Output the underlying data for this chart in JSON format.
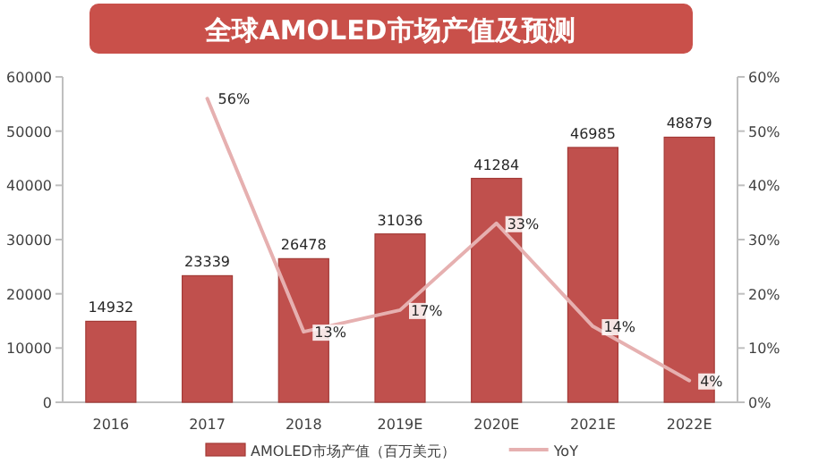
{
  "chart_data": {
    "type": "bar",
    "title": "全球AMOLED市场产值及预测",
    "categories": [
      "2016",
      "2017",
      "2018",
      "2019E",
      "2020E",
      "2021E",
      "2022E"
    ],
    "series": [
      {
        "name": "AMOLED市场产值（百万美元）",
        "color": "#c0504d",
        "values": [
          14932,
          23339,
          26478,
          31036,
          41284,
          46985,
          48879
        ],
        "data_labels": true
      },
      {
        "name": "YoY",
        "type": "line",
        "axis": "y2",
        "color": "#e6b0b0",
        "values": [
          null,
          56,
          13,
          17,
          33,
          14,
          4
        ],
        "value_labels": [
          null,
          "56%",
          "13%",
          "17%",
          "33%",
          "14%",
          "4%"
        ]
      }
    ],
    "ylim": [
      0,
      60000
    ],
    "yticks": [
      0,
      10000,
      20000,
      30000,
      40000,
      50000,
      60000
    ],
    "y2lim": [
      0,
      60
    ],
    "y2ticks": [
      {
        "value": 0,
        "label": "0%"
      },
      {
        "value": 10,
        "label": "10%"
      },
      {
        "value": 20,
        "label": "20%"
      },
      {
        "value": 30,
        "label": "30%"
      },
      {
        "value": 40,
        "label": "40%"
      },
      {
        "value": 50,
        "label": "50%"
      },
      {
        "value": 60,
        "label": "60%"
      }
    ],
    "legend": "bottom",
    "grid": false
  }
}
